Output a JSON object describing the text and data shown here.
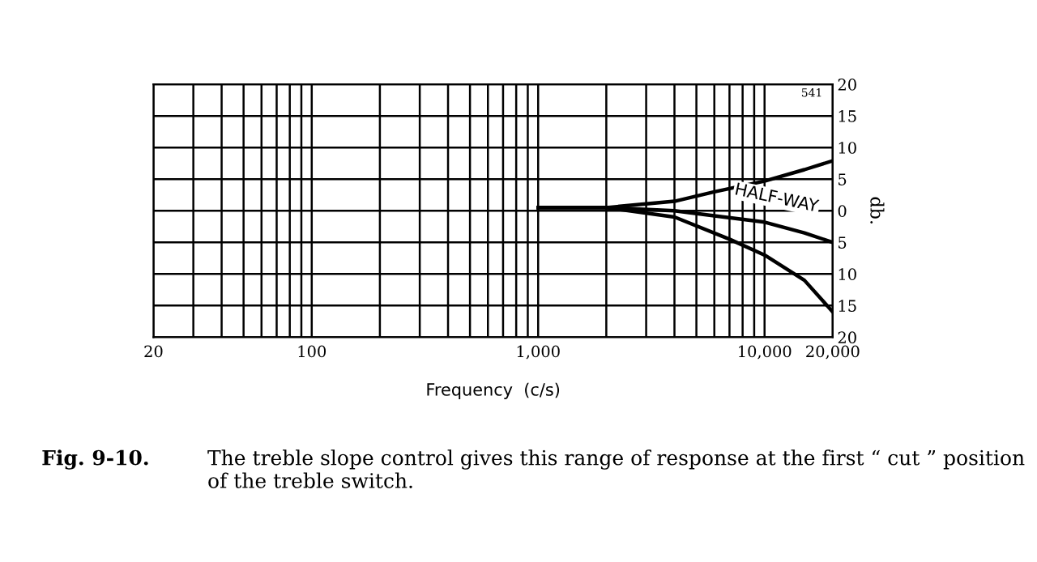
{
  "chart_data": {
    "type": "line",
    "xlabel": "Frequency  (c/s)",
    "ylabel": "db.",
    "log": "x",
    "grid": true,
    "line_style": "solid",
    "marker": "none",
    "xlim": [
      20,
      20000
    ],
    "xticks": [
      20,
      {
        "value": 30,
        "label": null
      },
      {
        "value": 40,
        "label": null
      },
      {
        "value": 50,
        "label": null
      },
      {
        "value": 60,
        "label": null
      },
      {
        "value": 70,
        "label": null
      },
      {
        "value": 80,
        "label": null
      },
      {
        "value": 90,
        "label": null
      },
      100,
      {
        "value": 200,
        "label": null
      },
      {
        "value": 300,
        "label": null
      },
      {
        "value": 400,
        "label": null
      },
      {
        "value": 500,
        "label": null
      },
      {
        "value": 600,
        "label": null
      },
      {
        "value": 700,
        "label": null
      },
      {
        "value": 800,
        "label": null
      },
      {
        "value": 900,
        "label": null
      },
      {
        "value": 1000,
        "label": "1,000"
      },
      {
        "value": 2000,
        "label": null
      },
      {
        "value": 3000,
        "label": null
      },
      {
        "value": 4000,
        "label": null
      },
      {
        "value": 5000,
        "label": null
      },
      {
        "value": 6000,
        "label": null
      },
      {
        "value": 7000,
        "label": null
      },
      {
        "value": 8000,
        "label": null
      },
      {
        "value": 9000,
        "label": null
      },
      {
        "value": 10000,
        "label": "10,000"
      },
      {
        "value": 20000,
        "label": "20,000"
      }
    ],
    "ylim": [
      -20,
      20
    ],
    "yticks": [
      {
        "value": -20,
        "label": "20"
      },
      {
        "value": -15,
        "label": "15"
      },
      {
        "value": -10,
        "label": "10"
      },
      {
        "value": -5,
        "label": "5"
      },
      0,
      5,
      10,
      15,
      20
    ],
    "series": [
      {
        "color": "#000000",
        "x": [
          1000,
          2000,
          4000,
          6000,
          10000,
          15000,
          20000
        ],
        "values": [
          0.5,
          0.5,
          1.5,
          3,
          4.7,
          6.5,
          7.9
        ]
      },
      {
        "name": "HALF-WAY",
        "color": "#000000",
        "x": [
          1000,
          2000,
          4000,
          6000,
          10000,
          15000,
          20000
        ],
        "values": [
          0.5,
          0.5,
          0,
          -0.8,
          -1.8,
          -3.5,
          -5
        ]
      },
      {
        "color": "#000000",
        "x": [
          1000,
          2000,
          4000,
          7000,
          10000,
          15000,
          20000
        ],
        "values": [
          0.5,
          0.5,
          -1,
          -4.5,
          -7,
          -11,
          -16
        ]
      }
    ],
    "annotations": [
      "541",
      "Fig. 9-10.",
      "The treble slope control gives this range of response at the first “ cut ” position of the treble switch."
    ]
  }
}
